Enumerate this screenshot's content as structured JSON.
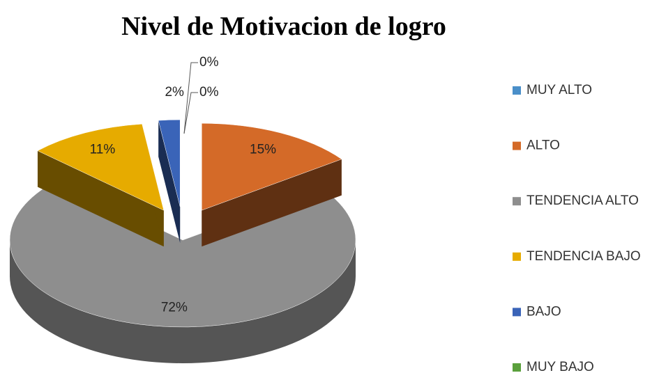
{
  "chart_data": {
    "type": "pie",
    "title": "Nivel de Motivacion de logro",
    "categories": [
      "MUY ALTO",
      "ALTO",
      "TENDENCIA ALTO",
      "TENDENCIA BAJO",
      "BAJO",
      "MUY BAJO"
    ],
    "values": [
      0,
      15,
      72,
      11,
      2,
      0
    ],
    "value_labels": [
      "0%",
      "15%",
      "72%",
      "11%",
      "2%",
      "0%"
    ],
    "colors": [
      "#4a8fc9",
      "#d46a28",
      "#8e8e8e",
      "#e6ab00",
      "#3a64b8",
      "#5aa03c"
    ],
    "legend": "right"
  }
}
